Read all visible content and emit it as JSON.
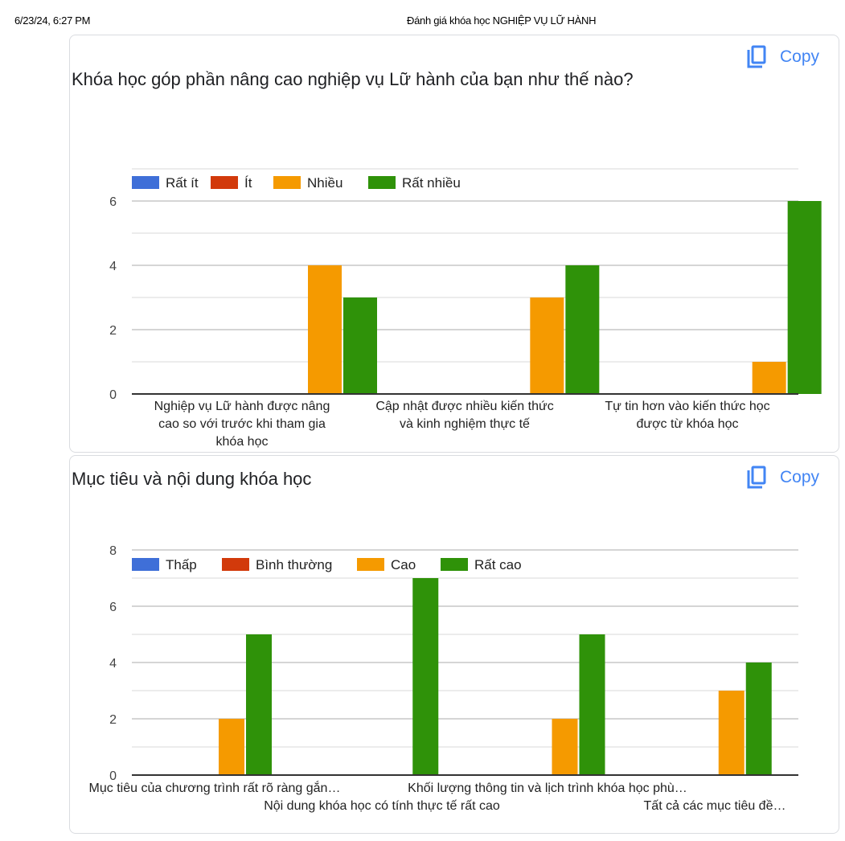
{
  "header": {
    "print_date": "6/23/24, 6:27 PM",
    "document_title": "Đánh giá khóa học NGHIỆP VỤ LỮ HÀNH"
  },
  "copy_label": "Copy",
  "colors": {
    "blue": "#3f6fd8",
    "red": "#d23a0b",
    "orange": "#f59a00",
    "green": "#2f9209",
    "copy_blue": "#4285f4",
    "grid": "#dedede",
    "axis": "#333333"
  },
  "chart_data": [
    {
      "type": "bar",
      "title": "Khóa học góp phần nâng cao nghiệp vụ Lữ hành của bạn như thế nào?",
      "xlabel": "",
      "ylabel": "",
      "ylim": [
        0,
        7
      ],
      "yticks": [
        "0",
        "2",
        "4",
        "6"
      ],
      "grid": true,
      "legend_position": "top-left",
      "categories": [
        [
          "Nghiệp vụ Lữ hành được nâng",
          "cao so với trước khi tham gia",
          "khóa học"
        ],
        [
          "Cập nhật được nhiều kiến thức",
          "và kinh nghiệm thực tế"
        ],
        [
          "Tự tin hơn vào kiến thức học",
          "được từ khóa học"
        ]
      ],
      "series": [
        {
          "name": "Rất ít",
          "color": "#3f6fd8",
          "values": [
            0,
            0,
            0
          ]
        },
        {
          "name": "Ít",
          "color": "#d23a0b",
          "values": [
            0,
            0,
            0
          ]
        },
        {
          "name": "Nhiều",
          "color": "#f59a00",
          "values": [
            4,
            3,
            1
          ]
        },
        {
          "name": "Rất nhiều",
          "color": "#2f9209",
          "values": [
            3,
            4,
            6
          ]
        }
      ]
    },
    {
      "type": "bar",
      "title": "Mục tiêu và nội dung khóa học",
      "xlabel": "",
      "ylabel": "",
      "ylim": [
        0,
        8
      ],
      "yticks": [
        "0",
        "2",
        "4",
        "6",
        "8"
      ],
      "grid": true,
      "legend_position": "top-left",
      "categories": [
        [
          "Mục tiêu của chương trình rất rõ ràng gắn…"
        ],
        [
          "Nội dung khóa học có tính thực tế rất cao"
        ],
        [
          "Khối lượng thông tin và lịch trình khóa học phù…"
        ],
        [
          "Tất cả các mục tiêu đề…"
        ]
      ],
      "series": [
        {
          "name": "Thấp",
          "color": "#3f6fd8",
          "values": [
            0,
            0,
            0,
            0
          ]
        },
        {
          "name": "Bình thường",
          "color": "#d23a0b",
          "values": [
            0,
            0,
            0,
            0
          ]
        },
        {
          "name": "Cao",
          "color": "#f59a00",
          "values": [
            2,
            0,
            2,
            3
          ]
        },
        {
          "name": "Rất cao",
          "color": "#2f9209",
          "values": [
            5,
            7,
            5,
            4
          ]
        }
      ]
    }
  ]
}
